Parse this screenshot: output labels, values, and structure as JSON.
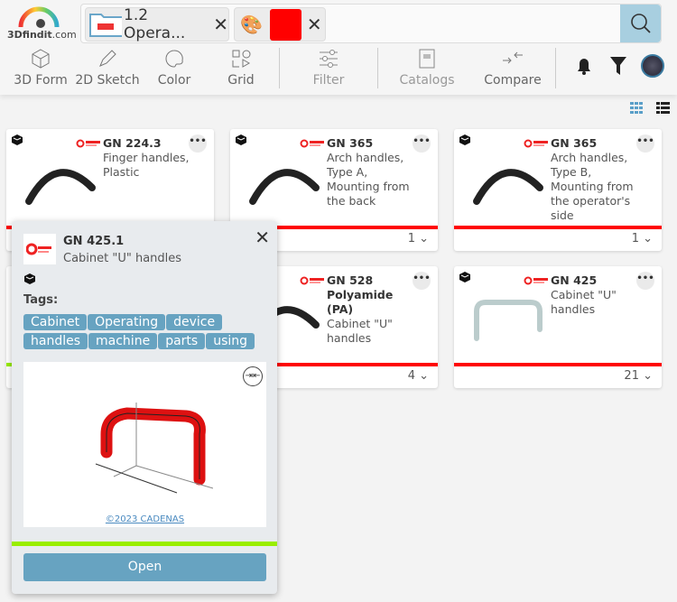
{
  "header": {
    "logo_text": "3Dfindit",
    "logo_suffix": ".com",
    "chips": [
      {
        "label": "1.2 Opera...",
        "icon": "folder-icon"
      },
      {
        "icon": "palette-icon",
        "color": "#ff0000"
      }
    ],
    "search_placeholder": "",
    "tools": [
      {
        "label": "3D Form",
        "icon": "cube-icon"
      },
      {
        "label": "2D Sketch",
        "icon": "pencil-icon"
      },
      {
        "label": "Color",
        "icon": "palette-icon"
      },
      {
        "label": "Grid",
        "icon": "grid-shapes-icon"
      },
      {
        "label": "Filter",
        "icon": "sliders-icon"
      },
      {
        "label": "Catalogs",
        "icon": "catalog-icon"
      },
      {
        "label": "Compare",
        "icon": "compare-icon"
      }
    ]
  },
  "cards": [
    {
      "code": "GN 224.3",
      "desc": "Finger handles, Plastic",
      "count": ""
    },
    {
      "code": "GN 365",
      "desc": "Arch handles, Type A, Mounting from the back",
      "count": "1"
    },
    {
      "code": "GN 365",
      "desc": "Arch handles, Type B, Mounting from the operator's side",
      "count": "1"
    },
    {
      "code": "",
      "desc": "",
      "count": ""
    },
    {
      "code": "GN 528",
      "desc2": "Polyamide (PA)",
      "desc": "Cabinet \"U\" handles",
      "count": "4"
    },
    {
      "code": "GN 425",
      "desc": "Cabinet \"U\" handles",
      "count": "21"
    }
  ],
  "popup": {
    "code": "GN 425.1",
    "desc": "Cabinet \"U\" handles",
    "tags_label": "Tags:",
    "tags": [
      "Cabinet",
      "Operating",
      "device",
      "handles",
      "machine",
      "parts",
      "using"
    ],
    "copyright": "©2023 CADENAS",
    "open_label": "Open",
    "status_color": "#99ee00"
  }
}
